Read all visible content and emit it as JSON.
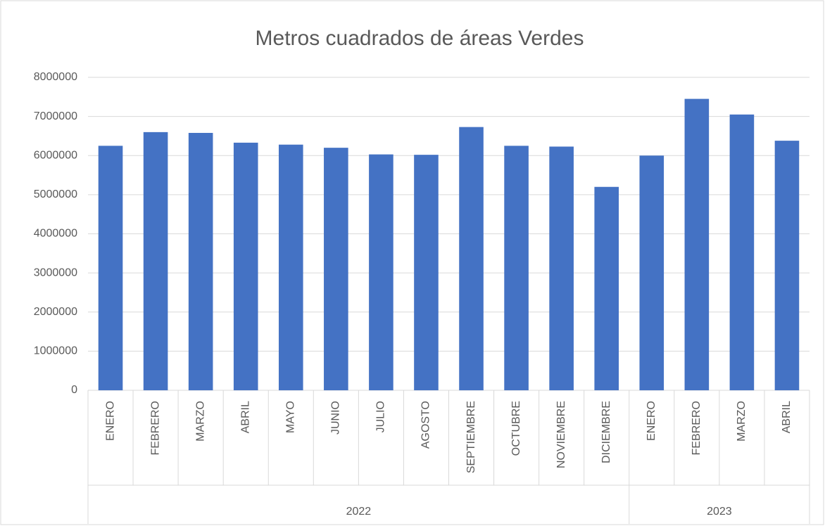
{
  "chart_data": {
    "type": "bar",
    "title": "Metros cuadrados de áreas Verdes",
    "groups": [
      {
        "name": "2022",
        "categories": [
          "ENERO",
          "FEBRERO",
          "MARZO",
          "ABRIL",
          "MAYO",
          "JUNIO",
          "JULIO",
          "AGOSTO",
          "SEPTIEMBRE",
          "OCTUBRE",
          "NOVIEMBRE",
          "DICIEMBRE"
        ],
        "values": [
          6250000,
          6600000,
          6580000,
          6330000,
          6280000,
          6200000,
          6030000,
          6020000,
          6730000,
          6250000,
          6230000,
          5200000
        ]
      },
      {
        "name": "2023",
        "categories": [
          "ENERO",
          "FEBRERO",
          "MARZO",
          "ABRIL"
        ],
        "values": [
          6000000,
          7450000,
          7050000,
          6380000
        ]
      }
    ],
    "color": "#4472c4",
    "ylim": [
      0,
      8000000
    ],
    "yticks": [
      0,
      1000000,
      2000000,
      3000000,
      4000000,
      5000000,
      6000000,
      7000000,
      8000000
    ],
    "grid": true
  }
}
